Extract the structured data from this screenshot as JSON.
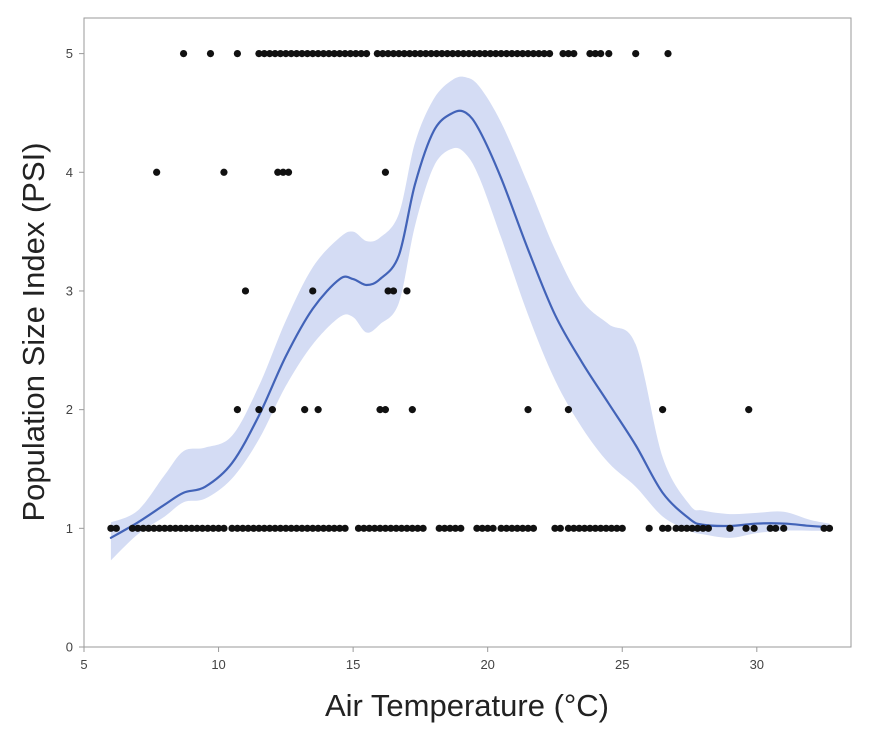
{
  "chart_data": {
    "type": "scatter",
    "title": "",
    "xlabel": "Air Temperature (°C)",
    "ylabel": "Population Size Index (PSI)",
    "xlim": [
      5,
      33.5
    ],
    "ylim": [
      0,
      5.3
    ],
    "xticks": [
      5,
      10,
      15,
      20,
      25,
      30
    ],
    "xtick_labels": [
      "5",
      "10",
      "15",
      "20",
      "25",
      "30"
    ],
    "yticks": [
      0,
      1,
      2,
      3,
      4,
      5
    ],
    "ytick_labels": [
      "0",
      "1",
      "2",
      "3",
      "4",
      "5"
    ],
    "grid": false,
    "legend": "none",
    "colors": {
      "points": "#111111",
      "fit_line": "#4263b8",
      "confidence_band": "#d4dcf4",
      "axis": "#9a9a9a"
    },
    "series": [
      {
        "type": "scatter",
        "points": [
          {
            "x": 8.7,
            "y": 5
          },
          {
            "x": 9.7,
            "y": 5
          },
          {
            "x": 10.7,
            "y": 5
          },
          {
            "x": 11.5,
            "y": 5
          },
          {
            "x": 11.7,
            "y": 5
          },
          {
            "x": 11.9,
            "y": 5
          },
          {
            "x": 12.1,
            "y": 5
          },
          {
            "x": 12.3,
            "y": 5
          },
          {
            "x": 12.5,
            "y": 5
          },
          {
            "x": 12.7,
            "y": 5
          },
          {
            "x": 12.9,
            "y": 5
          },
          {
            "x": 13.1,
            "y": 5
          },
          {
            "x": 13.3,
            "y": 5
          },
          {
            "x": 13.5,
            "y": 5
          },
          {
            "x": 13.7,
            "y": 5
          },
          {
            "x": 13.9,
            "y": 5
          },
          {
            "x": 14.1,
            "y": 5
          },
          {
            "x": 14.3,
            "y": 5
          },
          {
            "x": 14.5,
            "y": 5
          },
          {
            "x": 14.7,
            "y": 5
          },
          {
            "x": 14.9,
            "y": 5
          },
          {
            "x": 15.1,
            "y": 5
          },
          {
            "x": 15.3,
            "y": 5
          },
          {
            "x": 15.5,
            "y": 5
          },
          {
            "x": 15.9,
            "y": 5
          },
          {
            "x": 16.1,
            "y": 5
          },
          {
            "x": 16.3,
            "y": 5
          },
          {
            "x": 16.5,
            "y": 5
          },
          {
            "x": 16.7,
            "y": 5
          },
          {
            "x": 16.9,
            "y": 5
          },
          {
            "x": 17.1,
            "y": 5
          },
          {
            "x": 17.3,
            "y": 5
          },
          {
            "x": 17.5,
            "y": 5
          },
          {
            "x": 17.7,
            "y": 5
          },
          {
            "x": 17.9,
            "y": 5
          },
          {
            "x": 18.1,
            "y": 5
          },
          {
            "x": 18.3,
            "y": 5
          },
          {
            "x": 18.5,
            "y": 5
          },
          {
            "x": 18.7,
            "y": 5
          },
          {
            "x": 18.9,
            "y": 5
          },
          {
            "x": 19.1,
            "y": 5
          },
          {
            "x": 19.3,
            "y": 5
          },
          {
            "x": 19.5,
            "y": 5
          },
          {
            "x": 19.7,
            "y": 5
          },
          {
            "x": 19.9,
            "y": 5
          },
          {
            "x": 20.1,
            "y": 5
          },
          {
            "x": 20.3,
            "y": 5
          },
          {
            "x": 20.5,
            "y": 5
          },
          {
            "x": 20.7,
            "y": 5
          },
          {
            "x": 20.9,
            "y": 5
          },
          {
            "x": 21.1,
            "y": 5
          },
          {
            "x": 21.3,
            "y": 5
          },
          {
            "x": 21.5,
            "y": 5
          },
          {
            "x": 21.7,
            "y": 5
          },
          {
            "x": 21.9,
            "y": 5
          },
          {
            "x": 22.1,
            "y": 5
          },
          {
            "x": 22.3,
            "y": 5
          },
          {
            "x": 22.8,
            "y": 5
          },
          {
            "x": 23.0,
            "y": 5
          },
          {
            "x": 23.2,
            "y": 5
          },
          {
            "x": 23.8,
            "y": 5
          },
          {
            "x": 24.0,
            "y": 5
          },
          {
            "x": 24.2,
            "y": 5
          },
          {
            "x": 24.5,
            "y": 5
          },
          {
            "x": 25.5,
            "y": 5
          },
          {
            "x": 26.7,
            "y": 5
          },
          {
            "x": 7.7,
            "y": 4
          },
          {
            "x": 10.2,
            "y": 4
          },
          {
            "x": 12.2,
            "y": 4
          },
          {
            "x": 12.4,
            "y": 4
          },
          {
            "x": 12.6,
            "y": 4
          },
          {
            "x": 16.2,
            "y": 4
          },
          {
            "x": 11.0,
            "y": 3
          },
          {
            "x": 13.5,
            "y": 3
          },
          {
            "x": 16.3,
            "y": 3
          },
          {
            "x": 16.5,
            "y": 3
          },
          {
            "x": 17.0,
            "y": 3
          },
          {
            "x": 10.7,
            "y": 2
          },
          {
            "x": 11.5,
            "y": 2
          },
          {
            "x": 12.0,
            "y": 2
          },
          {
            "x": 13.2,
            "y": 2
          },
          {
            "x": 13.7,
            "y": 2
          },
          {
            "x": 16.0,
            "y": 2
          },
          {
            "x": 16.2,
            "y": 2
          },
          {
            "x": 17.2,
            "y": 2
          },
          {
            "x": 21.5,
            "y": 2
          },
          {
            "x": 23.0,
            "y": 2
          },
          {
            "x": 26.5,
            "y": 2
          },
          {
            "x": 29.7,
            "y": 2
          },
          {
            "x": 6.0,
            "y": 1
          },
          {
            "x": 6.2,
            "y": 1
          },
          {
            "x": 6.8,
            "y": 1
          },
          {
            "x": 7.0,
            "y": 1
          },
          {
            "x": 7.2,
            "y": 1
          },
          {
            "x": 7.4,
            "y": 1
          },
          {
            "x": 7.6,
            "y": 1
          },
          {
            "x": 7.8,
            "y": 1
          },
          {
            "x": 8.0,
            "y": 1
          },
          {
            "x": 8.2,
            "y": 1
          },
          {
            "x": 8.4,
            "y": 1
          },
          {
            "x": 8.6,
            "y": 1
          },
          {
            "x": 8.8,
            "y": 1
          },
          {
            "x": 9.0,
            "y": 1
          },
          {
            "x": 9.2,
            "y": 1
          },
          {
            "x": 9.4,
            "y": 1
          },
          {
            "x": 9.6,
            "y": 1
          },
          {
            "x": 9.8,
            "y": 1
          },
          {
            "x": 10.0,
            "y": 1
          },
          {
            "x": 10.2,
            "y": 1
          },
          {
            "x": 10.5,
            "y": 1
          },
          {
            "x": 10.7,
            "y": 1
          },
          {
            "x": 10.9,
            "y": 1
          },
          {
            "x": 11.1,
            "y": 1
          },
          {
            "x": 11.3,
            "y": 1
          },
          {
            "x": 11.5,
            "y": 1
          },
          {
            "x": 11.7,
            "y": 1
          },
          {
            "x": 11.9,
            "y": 1
          },
          {
            "x": 12.1,
            "y": 1
          },
          {
            "x": 12.3,
            "y": 1
          },
          {
            "x": 12.5,
            "y": 1
          },
          {
            "x": 12.7,
            "y": 1
          },
          {
            "x": 12.9,
            "y": 1
          },
          {
            "x": 13.1,
            "y": 1
          },
          {
            "x": 13.3,
            "y": 1
          },
          {
            "x": 13.5,
            "y": 1
          },
          {
            "x": 13.7,
            "y": 1
          },
          {
            "x": 13.9,
            "y": 1
          },
          {
            "x": 14.1,
            "y": 1
          },
          {
            "x": 14.3,
            "y": 1
          },
          {
            "x": 14.5,
            "y": 1
          },
          {
            "x": 14.7,
            "y": 1
          },
          {
            "x": 15.2,
            "y": 1
          },
          {
            "x": 15.4,
            "y": 1
          },
          {
            "x": 15.6,
            "y": 1
          },
          {
            "x": 15.8,
            "y": 1
          },
          {
            "x": 16.0,
            "y": 1
          },
          {
            "x": 16.2,
            "y": 1
          },
          {
            "x": 16.4,
            "y": 1
          },
          {
            "x": 16.6,
            "y": 1
          },
          {
            "x": 16.8,
            "y": 1
          },
          {
            "x": 17.0,
            "y": 1
          },
          {
            "x": 17.2,
            "y": 1
          },
          {
            "x": 17.4,
            "y": 1
          },
          {
            "x": 17.6,
            "y": 1
          },
          {
            "x": 18.2,
            "y": 1
          },
          {
            "x": 18.4,
            "y": 1
          },
          {
            "x": 18.6,
            "y": 1
          },
          {
            "x": 18.8,
            "y": 1
          },
          {
            "x": 19.0,
            "y": 1
          },
          {
            "x": 19.6,
            "y": 1
          },
          {
            "x": 19.8,
            "y": 1
          },
          {
            "x": 20.0,
            "y": 1
          },
          {
            "x": 20.2,
            "y": 1
          },
          {
            "x": 20.5,
            "y": 1
          },
          {
            "x": 20.7,
            "y": 1
          },
          {
            "x": 20.9,
            "y": 1
          },
          {
            "x": 21.1,
            "y": 1
          },
          {
            "x": 21.3,
            "y": 1
          },
          {
            "x": 21.5,
            "y": 1
          },
          {
            "x": 21.7,
            "y": 1
          },
          {
            "x": 22.5,
            "y": 1
          },
          {
            "x": 22.7,
            "y": 1
          },
          {
            "x": 23.0,
            "y": 1
          },
          {
            "x": 23.2,
            "y": 1
          },
          {
            "x": 23.4,
            "y": 1
          },
          {
            "x": 23.6,
            "y": 1
          },
          {
            "x": 23.8,
            "y": 1
          },
          {
            "x": 24.0,
            "y": 1
          },
          {
            "x": 24.2,
            "y": 1
          },
          {
            "x": 24.4,
            "y": 1
          },
          {
            "x": 24.6,
            "y": 1
          },
          {
            "x": 24.8,
            "y": 1
          },
          {
            "x": 25.0,
            "y": 1
          },
          {
            "x": 26.0,
            "y": 1
          },
          {
            "x": 26.5,
            "y": 1
          },
          {
            "x": 26.7,
            "y": 1
          },
          {
            "x": 27.0,
            "y": 1
          },
          {
            "x": 27.2,
            "y": 1
          },
          {
            "x": 27.4,
            "y": 1
          },
          {
            "x": 27.6,
            "y": 1
          },
          {
            "x": 27.8,
            "y": 1
          },
          {
            "x": 28.0,
            "y": 1
          },
          {
            "x": 28.2,
            "y": 1
          },
          {
            "x": 29.0,
            "y": 1
          },
          {
            "x": 29.6,
            "y": 1
          },
          {
            "x": 29.9,
            "y": 1
          },
          {
            "x": 30.5,
            "y": 1
          },
          {
            "x": 30.7,
            "y": 1
          },
          {
            "x": 31.0,
            "y": 1
          },
          {
            "x": 32.5,
            "y": 1
          },
          {
            "x": 32.7,
            "y": 1
          }
        ]
      },
      {
        "type": "line",
        "x": [
          6.0,
          7.0,
          8.0,
          8.7,
          9.5,
          10.5,
          11.5,
          12.5,
          13.5,
          14.5,
          15.0,
          15.5,
          16.0,
          16.7,
          17.3,
          18.0,
          18.7,
          19.2,
          19.7,
          20.5,
          21.5,
          22.5,
          23.5,
          24.5,
          25.5,
          26.5,
          27.5,
          28.0,
          29.0,
          30.0,
          31.0,
          32.0,
          32.7
        ],
        "y": [
          0.92,
          1.05,
          1.2,
          1.3,
          1.35,
          1.55,
          1.95,
          2.45,
          2.85,
          3.1,
          3.1,
          3.05,
          3.1,
          3.3,
          3.9,
          4.35,
          4.5,
          4.5,
          4.35,
          3.95,
          3.35,
          2.8,
          2.4,
          2.05,
          1.7,
          1.3,
          1.08,
          1.03,
          1.02,
          1.04,
          1.04,
          1.02,
          1.01
        ],
        "lower": [
          0.73,
          0.95,
          1.1,
          1.22,
          1.25,
          1.42,
          1.75,
          2.2,
          2.55,
          2.78,
          2.78,
          2.65,
          2.72,
          2.9,
          3.55,
          4.05,
          4.2,
          4.15,
          3.95,
          3.45,
          2.8,
          2.25,
          1.85,
          1.55,
          1.35,
          1.1,
          0.98,
          0.95,
          0.92,
          0.96,
          0.98,
          0.98,
          0.98
        ],
        "upper": [
          1.05,
          1.15,
          1.45,
          1.65,
          1.68,
          1.78,
          2.2,
          2.75,
          3.2,
          3.45,
          3.5,
          3.42,
          3.45,
          3.65,
          4.25,
          4.62,
          4.78,
          4.8,
          4.72,
          4.42,
          3.9,
          3.35,
          2.92,
          2.72,
          2.55,
          1.6,
          1.2,
          1.15,
          1.12,
          1.13,
          1.14,
          1.07,
          1.04
        ]
      }
    ]
  }
}
